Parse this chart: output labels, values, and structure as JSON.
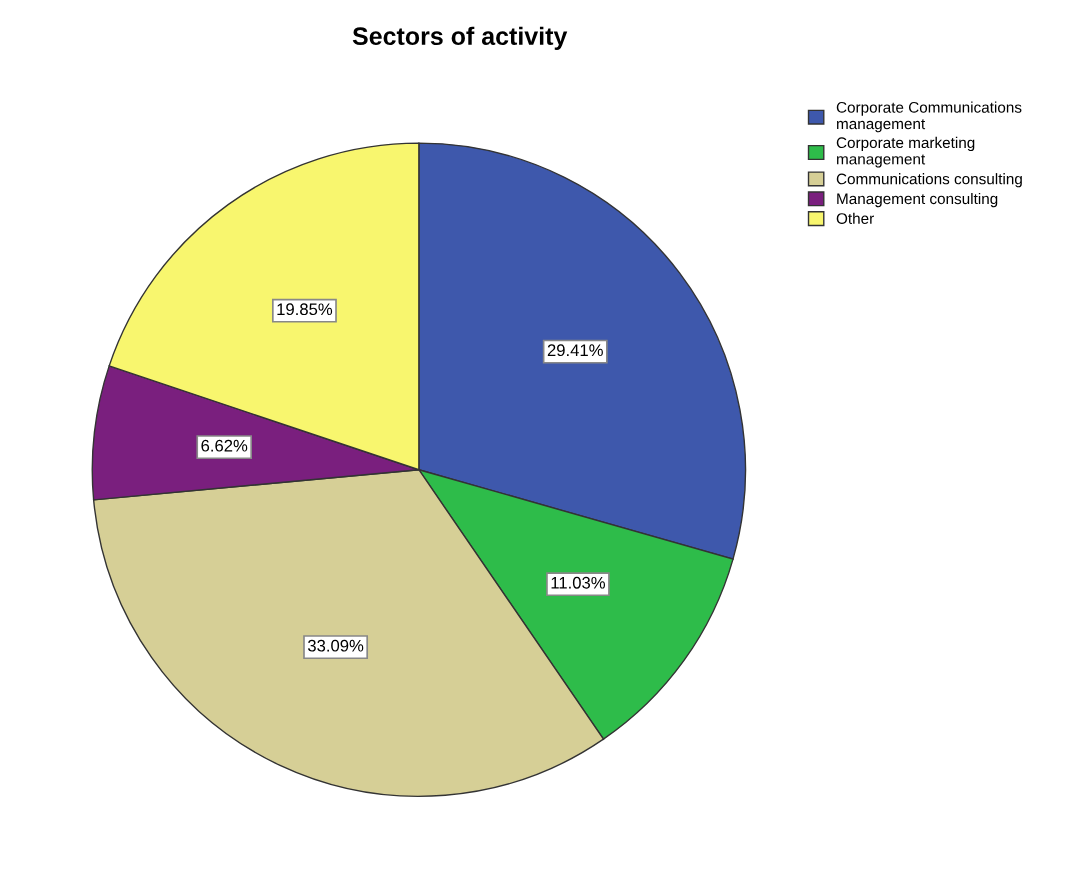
{
  "chart_data": {
    "type": "pie",
    "title": "Sectors of activity",
    "categories": [
      "Corporate Communications management",
      "Corporate marketing management",
      "Communications consulting",
      "Management consulting",
      "Other"
    ],
    "values": [
      29.41,
      11.03,
      33.09,
      6.62,
      19.85
    ],
    "colors": [
      "#3e58ac",
      "#2ebc4a",
      "#d6cf96",
      "#7a1f7e",
      "#f8f66e"
    ],
    "value_labels": [
      "29.41%",
      "11.03%",
      "33.09%",
      "6.62%",
      "19.85%"
    ],
    "legend": "top right"
  }
}
